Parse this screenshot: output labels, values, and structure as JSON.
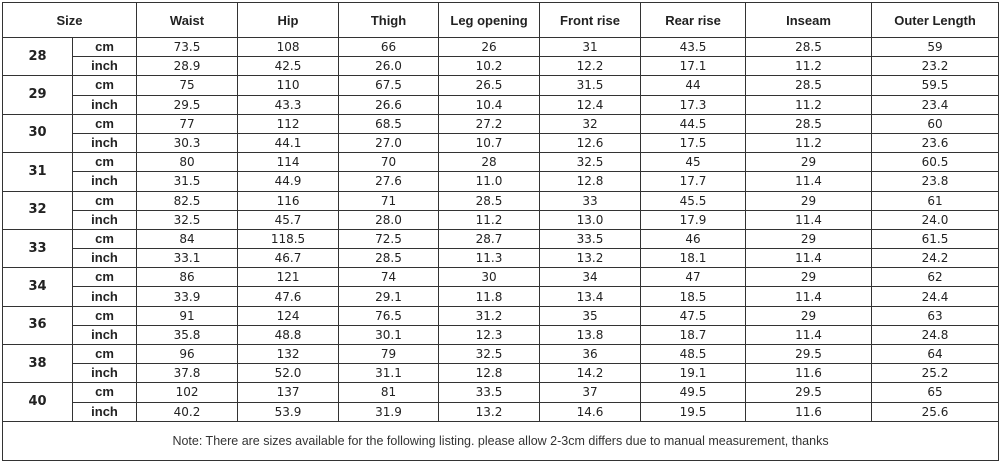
{
  "table": {
    "headers": [
      "Size",
      "Waist",
      "Hip",
      "Thigh",
      "Leg opening",
      "Front rise",
      "Rear rise",
      "Inseam",
      "Outer Length"
    ],
    "units": [
      "cm",
      "inch"
    ],
    "rows": [
      {
        "size": "28",
        "cm": [
          "73.5",
          "108",
          "66",
          "26",
          "31",
          "43.5",
          "28.5",
          "59"
        ],
        "inch": [
          "28.9",
          "42.5",
          "26.0",
          "10.2",
          "12.2",
          "17.1",
          "11.2",
          "23.2"
        ]
      },
      {
        "size": "29",
        "cm": [
          "75",
          "110",
          "67.5",
          "26.5",
          "31.5",
          "44",
          "28.5",
          "59.5"
        ],
        "inch": [
          "29.5",
          "43.3",
          "26.6",
          "10.4",
          "12.4",
          "17.3",
          "11.2",
          "23.4"
        ]
      },
      {
        "size": "30",
        "cm": [
          "77",
          "112",
          "68.5",
          "27.2",
          "32",
          "44.5",
          "28.5",
          "60"
        ],
        "inch": [
          "30.3",
          "44.1",
          "27.0",
          "10.7",
          "12.6",
          "17.5",
          "11.2",
          "23.6"
        ]
      },
      {
        "size": "31",
        "cm": [
          "80",
          "114",
          "70",
          "28",
          "32.5",
          "45",
          "29",
          "60.5"
        ],
        "inch": [
          "31.5",
          "44.9",
          "27.6",
          "11.0",
          "12.8",
          "17.7",
          "11.4",
          "23.8"
        ]
      },
      {
        "size": "32",
        "cm": [
          "82.5",
          "116",
          "71",
          "28.5",
          "33",
          "45.5",
          "29",
          "61"
        ],
        "inch": [
          "32.5",
          "45.7",
          "28.0",
          "11.2",
          "13.0",
          "17.9",
          "11.4",
          "24.0"
        ]
      },
      {
        "size": "33",
        "cm": [
          "84",
          "118.5",
          "72.5",
          "28.7",
          "33.5",
          "46",
          "29",
          "61.5"
        ],
        "inch": [
          "33.1",
          "46.7",
          "28.5",
          "11.3",
          "13.2",
          "18.1",
          "11.4",
          "24.2"
        ]
      },
      {
        "size": "34",
        "cm": [
          "86",
          "121",
          "74",
          "30",
          "34",
          "47",
          "29",
          "62"
        ],
        "inch": [
          "33.9",
          "47.6",
          "29.1",
          "11.8",
          "13.4",
          "18.5",
          "11.4",
          "24.4"
        ]
      },
      {
        "size": "36",
        "cm": [
          "91",
          "124",
          "76.5",
          "31.2",
          "35",
          "47.5",
          "29",
          "63"
        ],
        "inch": [
          "35.8",
          "48.8",
          "30.1",
          "12.3",
          "13.8",
          "18.7",
          "11.4",
          "24.8"
        ]
      },
      {
        "size": "38",
        "cm": [
          "96",
          "132",
          "79",
          "32.5",
          "36",
          "48.5",
          "29.5",
          "64"
        ],
        "inch": [
          "37.8",
          "52.0",
          "31.1",
          "12.8",
          "14.2",
          "19.1",
          "11.6",
          "25.2"
        ]
      },
      {
        "size": "40",
        "cm": [
          "102",
          "137",
          "81",
          "33.5",
          "37",
          "49.5",
          "29.5",
          "65"
        ],
        "inch": [
          "40.2",
          "53.9",
          "31.9",
          "13.2",
          "14.6",
          "19.5",
          "11.6",
          "25.6"
        ]
      }
    ],
    "note": "Note: There are sizes available for the following listing. please allow 2-3cm differs due to manual measurement, thanks"
  }
}
